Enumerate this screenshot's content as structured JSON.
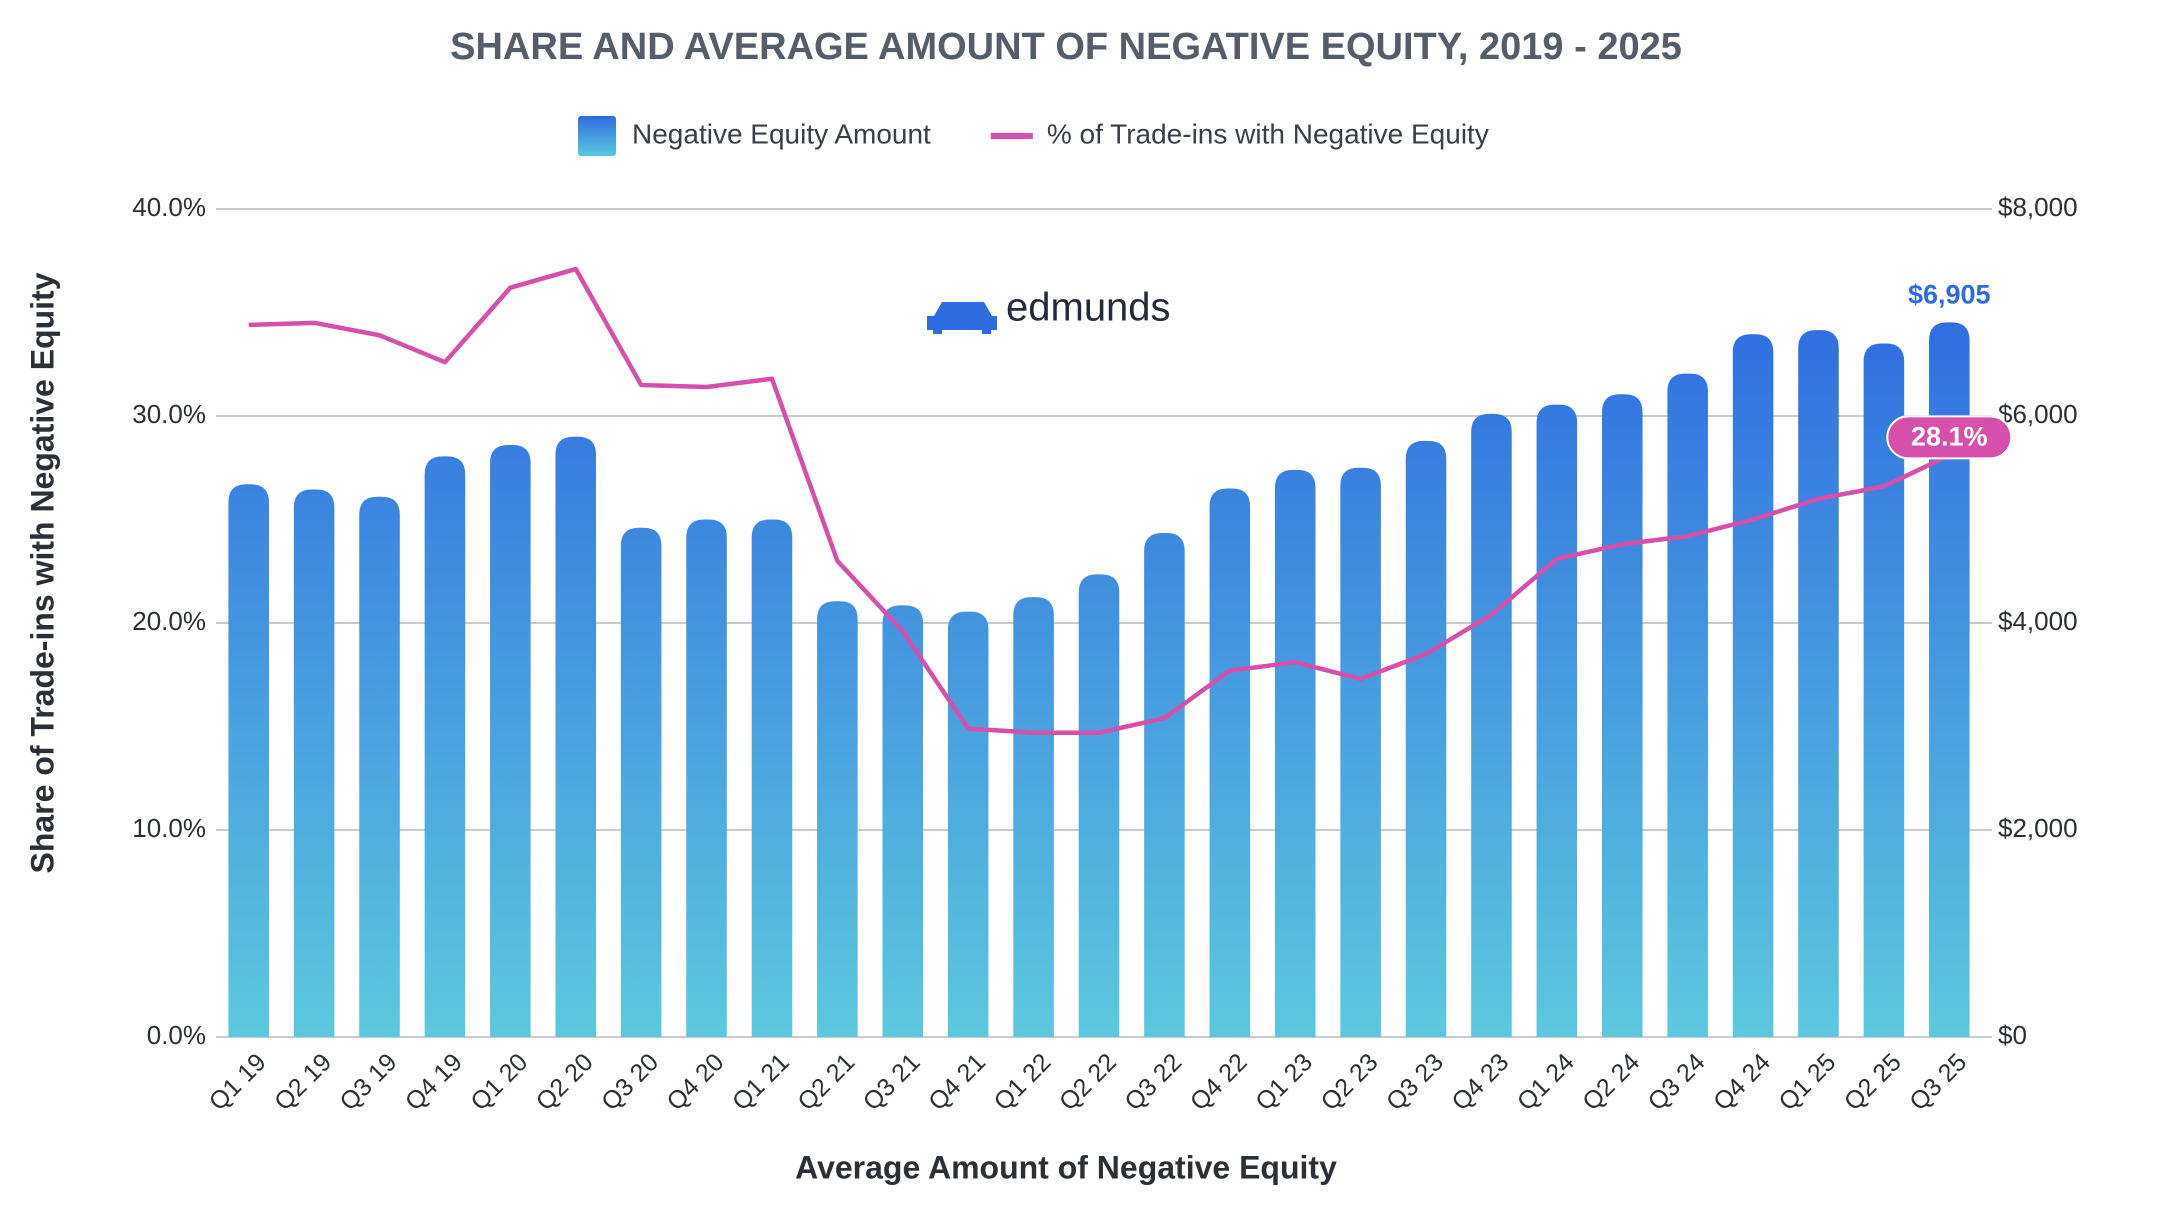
{
  "chart_data": {
    "type": "bar_line",
    "title": "SHARE AND AVERAGE AMOUNT OF NEGATIVE EQUITY, 2019 - 2025",
    "watermark": "edmunds",
    "x_label": "Average Amount of Negative Equity",
    "y_label": "Share of Trade-ins with Negative Equity",
    "categories": [
      "Q1 19",
      "Q2 19",
      "Q3 19",
      "Q4 19",
      "Q1 20",
      "Q2 20",
      "Q3 20",
      "Q4 20",
      "Q1 21",
      "Q2 21",
      "Q3 21",
      "Q4 21",
      "Q1 22",
      "Q2 22",
      "Q3 22",
      "Q4 22",
      "Q1 23",
      "Q2 23",
      "Q3 23",
      "Q4 23",
      "Q1 24",
      "Q2 24",
      "Q3 24",
      "Q4 24",
      "Q1 25",
      "Q2 25",
      "Q3 25"
    ],
    "series": [
      {
        "name": "Negative Equity Amount",
        "type": "bar",
        "axis": "y2",
        "color": [
          "#2f6be0",
          "#5cc8de"
        ],
        "values": [
          5340,
          5290,
          5220,
          5610,
          5720,
          5800,
          4920,
          5000,
          5000,
          4210,
          4170,
          4110,
          4250,
          4470,
          4870,
          5300,
          5480,
          5500,
          5760,
          6020,
          6110,
          6210,
          6410,
          6790,
          6830,
          6700,
          6905
        ],
        "value_labels": [
          null,
          null,
          null,
          null,
          null,
          null,
          null,
          null,
          null,
          null,
          null,
          null,
          null,
          null,
          null,
          null,
          null,
          null,
          null,
          null,
          null,
          null,
          null,
          null,
          null,
          null,
          "$6,905"
        ]
      },
      {
        "name": "% of Trade-ins with Negative Equity",
        "type": "line",
        "axis": "y",
        "color": "#d64fab",
        "values": [
          34.4,
          34.5,
          33.9,
          32.6,
          36.2,
          37.1,
          31.5,
          31.4,
          31.8,
          23.0,
          19.6,
          14.9,
          14.7,
          14.7,
          15.4,
          17.7,
          18.1,
          17.3,
          18.5,
          20.4,
          23.1,
          23.8,
          24.2,
          25.0,
          26.0,
          26.6,
          28.1
        ],
        "value_labels": [
          null,
          null,
          null,
          null,
          null,
          null,
          null,
          null,
          null,
          null,
          null,
          null,
          null,
          null,
          null,
          null,
          null,
          null,
          null,
          null,
          null,
          null,
          null,
          null,
          null,
          null,
          "28.1%"
        ]
      }
    ],
    "ylim": [
      0,
      40
    ],
    "yticks": [
      {
        "value": 0,
        "label": "0.0%"
      },
      {
        "value": 10,
        "label": "10.0%"
      },
      {
        "value": 20,
        "label": "20.0%"
      },
      {
        "value": 30,
        "label": "30.0%"
      },
      {
        "value": 40,
        "label": "40.0%"
      }
    ],
    "y2lim": [
      0,
      8000
    ],
    "y2ticks": [
      {
        "value": 0,
        "label": "$0"
      },
      {
        "value": 2000,
        "label": "$2,000"
      },
      {
        "value": 4000,
        "label": "$4,000"
      },
      {
        "value": 6000,
        "label": "$6,000"
      },
      {
        "value": 8000,
        "label": "$8,000"
      }
    ],
    "grid": true,
    "legend": "top"
  }
}
